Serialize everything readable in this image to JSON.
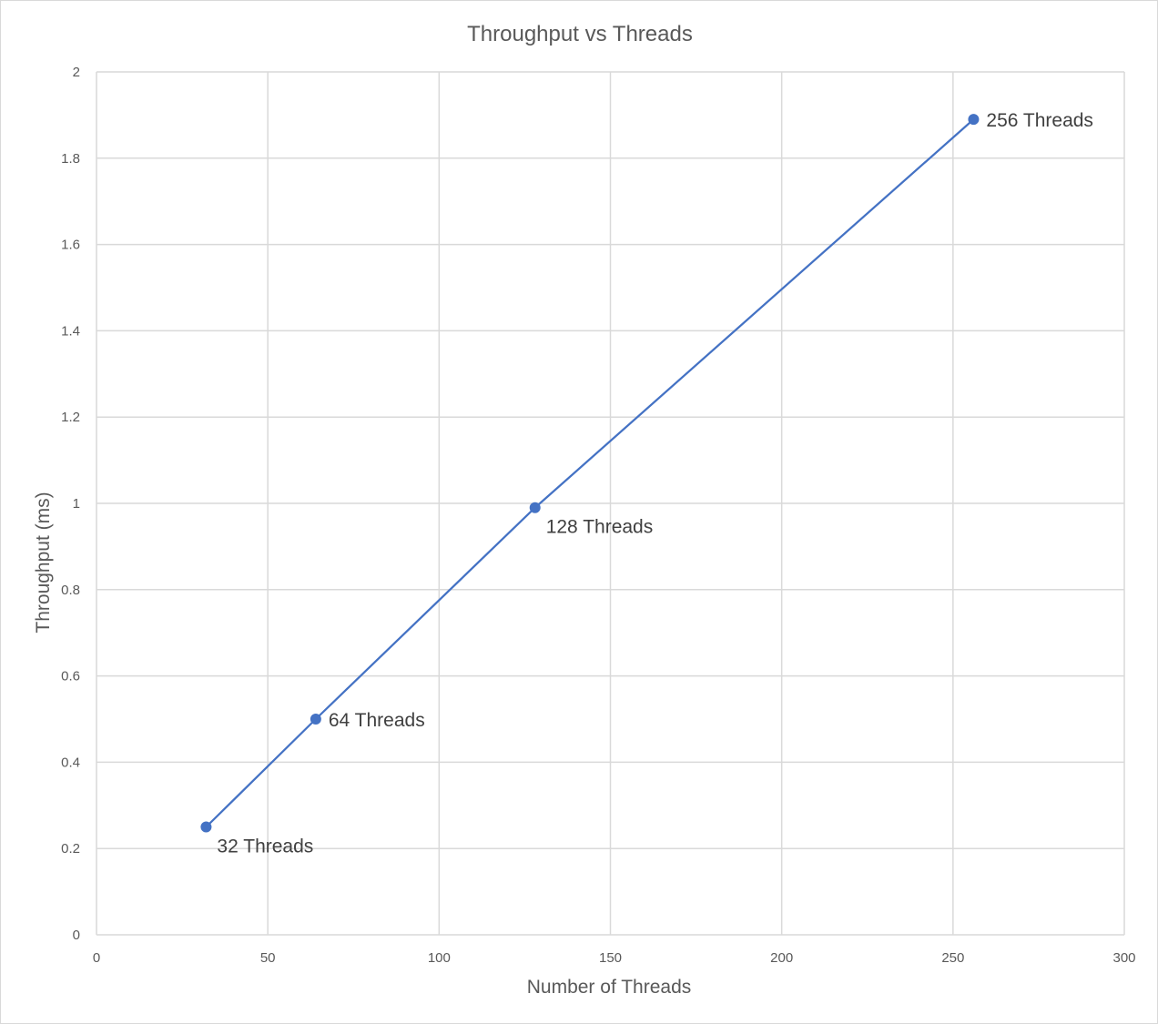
{
  "chart_data": {
    "type": "scatter",
    "title": "Throughput vs Threads",
    "xlabel": "Number of Threads",
    "ylabel": "Throughput (ms)",
    "xlim": [
      0,
      300
    ],
    "ylim": [
      0,
      2
    ],
    "x_ticks": [
      0,
      50,
      100,
      150,
      200,
      250,
      300
    ],
    "y_ticks": [
      0,
      0.2,
      0.4,
      0.6,
      0.8,
      1,
      1.2,
      1.4,
      1.6,
      1.8,
      2
    ],
    "grid": true,
    "legend": "none",
    "series_color": "#4472c4",
    "series": [
      {
        "points": [
          {
            "x": 32,
            "y": 0.25,
            "label": "32 Threads",
            "label_position": "below-right"
          },
          {
            "x": 64,
            "y": 0.5,
            "label": "64 Threads",
            "label_position": "right"
          },
          {
            "x": 128,
            "y": 0.99,
            "label": "128 Threads",
            "label_position": "below-right"
          },
          {
            "x": 256,
            "y": 1.89,
            "label": "256 Threads",
            "label_position": "right"
          }
        ]
      }
    ]
  }
}
